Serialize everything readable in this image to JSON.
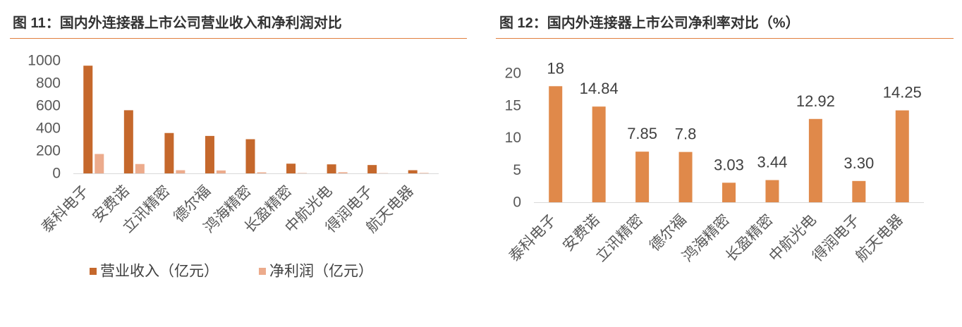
{
  "chart_data": [
    {
      "type": "bar",
      "title": "图 11：国内外连接器上市公司营业收入和净利润对比",
      "categories": [
        "泰科电子",
        "安费诺",
        "立讯精密",
        "德尔福",
        "鸿海精密",
        "长盈精密",
        "中航光电",
        "得润电子",
        "航天电器"
      ],
      "series": [
        {
          "name": "营业收入（亿元）",
          "values": [
            955,
            560,
            358,
            332,
            303,
            86,
            80,
            74,
            28
          ],
          "color": "#c5682c"
        },
        {
          "name": "净利润（亿元）",
          "values": [
            172,
            83,
            28,
            26,
            9,
            3,
            10,
            2,
            4
          ],
          "color": "#ecab8c"
        }
      ],
      "ylim": [
        0,
        1000
      ],
      "yticks": [
        0,
        200,
        400,
        600,
        800,
        1000
      ],
      "grid": false,
      "legend": "bottom"
    },
    {
      "type": "bar",
      "title": "图 12：国内外连接器上市公司净利率对比（%）",
      "categories": [
        "泰科电子",
        "安费诺",
        "立讯精密",
        "德尔福",
        "鸿海精密",
        "长盈精密",
        "中航光电",
        "得润电子",
        "航天电器"
      ],
      "series": [
        {
          "values": [
            18,
            14.84,
            7.85,
            7.8,
            3.03,
            3.44,
            12.92,
            3.3,
            14.25
          ],
          "color": "#e0894a"
        }
      ],
      "data_labels": [
        "18",
        "14.84",
        "7.85",
        "7.8",
        "3.03",
        "3.44",
        "12.92",
        "3.30",
        "14.25"
      ],
      "ylim": [
        0,
        20
      ],
      "yticks": [
        0,
        5,
        10,
        15,
        20
      ],
      "grid": false,
      "legend": "none"
    }
  ],
  "theme": {
    "accent": "#e07f3e",
    "axis": "#d9d9d9"
  }
}
